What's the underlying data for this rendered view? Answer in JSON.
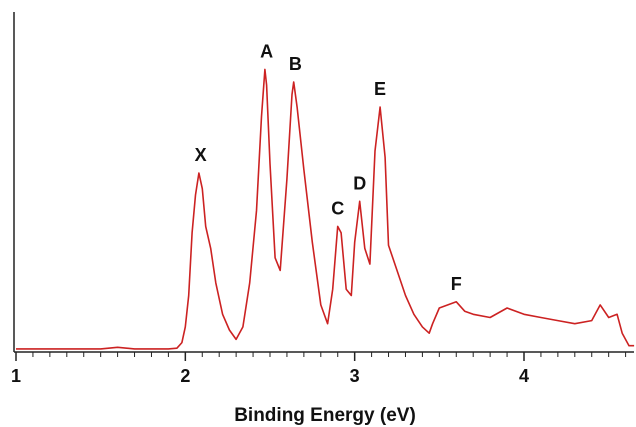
{
  "chart_data": {
    "type": "line",
    "title": "",
    "xlabel": "Binding Energy (eV)",
    "ylabel": "",
    "xlim": [
      1,
      4.65
    ],
    "ylim": [
      0,
      1
    ],
    "grid": false,
    "legend": "none",
    "x_ticks": [
      {
        "value": 1,
        "label": "1"
      },
      {
        "value": 2,
        "label": "2"
      },
      {
        "value": 3,
        "label": "3"
      },
      {
        "value": 4,
        "label": "4"
      }
    ],
    "x_minor_step": 0.1,
    "series": [
      {
        "color": "#cc2222",
        "points": [
          [
            1.0,
            0.01
          ],
          [
            1.1,
            0.01
          ],
          [
            1.2,
            0.01
          ],
          [
            1.3,
            0.01
          ],
          [
            1.4,
            0.01
          ],
          [
            1.5,
            0.01
          ],
          [
            1.6,
            0.015
          ],
          [
            1.7,
            0.01
          ],
          [
            1.8,
            0.01
          ],
          [
            1.9,
            0.01
          ],
          [
            1.95,
            0.012
          ],
          [
            1.98,
            0.03
          ],
          [
            2.0,
            0.08
          ],
          [
            2.02,
            0.18
          ],
          [
            2.04,
            0.38
          ],
          [
            2.06,
            0.5
          ],
          [
            2.08,
            0.57
          ],
          [
            2.1,
            0.52
          ],
          [
            2.12,
            0.4
          ],
          [
            2.15,
            0.33
          ],
          [
            2.18,
            0.22
          ],
          [
            2.22,
            0.12
          ],
          [
            2.26,
            0.07
          ],
          [
            2.3,
            0.04
          ],
          [
            2.34,
            0.08
          ],
          [
            2.38,
            0.22
          ],
          [
            2.42,
            0.45
          ],
          [
            2.45,
            0.75
          ],
          [
            2.47,
            0.9
          ],
          [
            2.48,
            0.85
          ],
          [
            2.5,
            0.6
          ],
          [
            2.53,
            0.3
          ],
          [
            2.56,
            0.26
          ],
          [
            2.6,
            0.55
          ],
          [
            2.63,
            0.82
          ],
          [
            2.64,
            0.86
          ],
          [
            2.66,
            0.78
          ],
          [
            2.7,
            0.58
          ],
          [
            2.75,
            0.35
          ],
          [
            2.8,
            0.15
          ],
          [
            2.84,
            0.09
          ],
          [
            2.87,
            0.2
          ],
          [
            2.9,
            0.4
          ],
          [
            2.92,
            0.38
          ],
          [
            2.95,
            0.2
          ],
          [
            2.98,
            0.18
          ],
          [
            3.0,
            0.35
          ],
          [
            3.03,
            0.48
          ],
          [
            3.06,
            0.33
          ],
          [
            3.09,
            0.28
          ],
          [
            3.12,
            0.64
          ],
          [
            3.15,
            0.78
          ],
          [
            3.18,
            0.62
          ],
          [
            3.2,
            0.34
          ],
          [
            3.25,
            0.26
          ],
          [
            3.3,
            0.18
          ],
          [
            3.35,
            0.12
          ],
          [
            3.4,
            0.08
          ],
          [
            3.44,
            0.06
          ],
          [
            3.46,
            0.09
          ],
          [
            3.5,
            0.14
          ],
          [
            3.55,
            0.15
          ],
          [
            3.6,
            0.16
          ],
          [
            3.65,
            0.13
          ],
          [
            3.7,
            0.12
          ],
          [
            3.8,
            0.11
          ],
          [
            3.9,
            0.14
          ],
          [
            4.0,
            0.12
          ],
          [
            4.1,
            0.11
          ],
          [
            4.2,
            0.1
          ],
          [
            4.3,
            0.09
          ],
          [
            4.4,
            0.1
          ],
          [
            4.45,
            0.15
          ],
          [
            4.5,
            0.11
          ],
          [
            4.55,
            0.12
          ],
          [
            4.58,
            0.06
          ],
          [
            4.62,
            0.02
          ],
          [
            4.65,
            0.02
          ]
        ]
      }
    ],
    "annotations": [
      {
        "label": "X",
        "x": 2.09,
        "y": 0.57
      },
      {
        "label": "A",
        "x": 2.48,
        "y": 0.9
      },
      {
        "label": "B",
        "x": 2.65,
        "y": 0.86
      },
      {
        "label": "C",
        "x": 2.9,
        "y": 0.4
      },
      {
        "label": "D",
        "x": 3.03,
        "y": 0.48
      },
      {
        "label": "E",
        "x": 3.15,
        "y": 0.78
      },
      {
        "label": "F",
        "x": 3.6,
        "y": 0.16
      }
    ]
  }
}
